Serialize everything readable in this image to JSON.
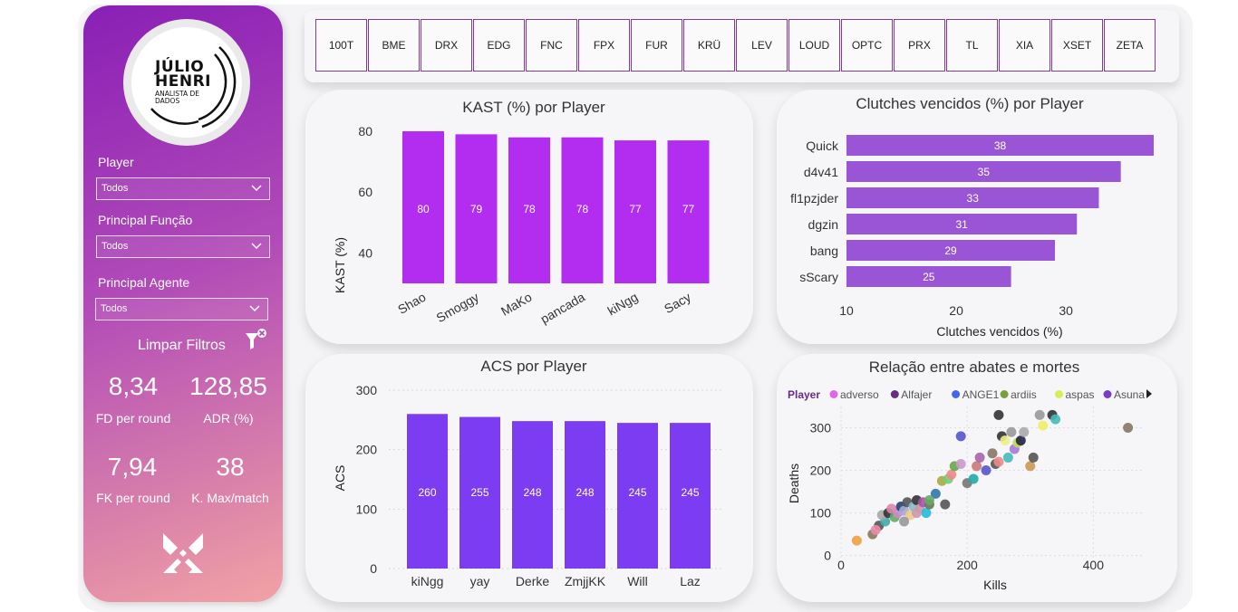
{
  "logo": {
    "line1": "JÚLIO",
    "line2": "HENRI",
    "line3": "ANALISTA DE DADOS"
  },
  "filters": [
    {
      "label": "Player",
      "value": "Todos"
    },
    {
      "label": "Principal Função",
      "value": "Todos"
    },
    {
      "label": "Principal Agente",
      "value": "Todos"
    }
  ],
  "clear_filters": "Limpar Filtros",
  "kpis": [
    {
      "value": "8,34",
      "label": "FD per round"
    },
    {
      "value": "128,85",
      "label": "ADR (%)"
    },
    {
      "value": "7,94",
      "label": "FK per round"
    },
    {
      "value": "38",
      "label": "K. Max/match"
    }
  ],
  "teams": [
    "100T",
    "BME",
    "DRX",
    "EDG",
    "FNC",
    "FPX",
    "FUR",
    "KRÜ",
    "LEV",
    "LOUD",
    "OPTC",
    "PRX",
    "TL",
    "XIA",
    "XSET",
    "ZETA"
  ],
  "colors": {
    "kast_bar": "#b32df0",
    "clutch_bar": "#9a55d6",
    "acs_bar": "#7b3cf2",
    "accent": "#7d3c98"
  },
  "chart_data": [
    {
      "type": "bar",
      "title": "KAST (%) por Player",
      "xlabel": "",
      "ylabel": "KAST (%)",
      "categories": [
        "Shao",
        "Smoggy",
        "MaKo",
        "pancada",
        "kiNgg",
        "Sacy"
      ],
      "values": [
        80,
        79,
        78,
        78,
        77,
        77
      ],
      "labels": [
        "80",
        "79",
        "78",
        "78",
        "77",
        "77"
      ],
      "yticks": [
        "40",
        "60",
        "80"
      ],
      "ylim": [
        30,
        80
      ]
    },
    {
      "type": "bar",
      "orientation": "horizontal",
      "title": "Clutches vencidos (%) por Player",
      "xlabel": "Clutches vencidos (%)",
      "ylabel": "",
      "categories": [
        "Quick",
        "d4v41",
        "fl1pzjder",
        "dgzin",
        "bang",
        "sScary"
      ],
      "values": [
        38,
        35,
        33,
        31,
        29,
        25
      ],
      "labels": [
        "38",
        "35",
        "33",
        "31",
        "29",
        "25"
      ],
      "xticks": [
        "10",
        "20",
        "30"
      ],
      "xlim": [
        10,
        38
      ]
    },
    {
      "type": "bar",
      "title": "ACS por Player",
      "xlabel": "",
      "ylabel": "ACS",
      "categories": [
        "kiNgg",
        "yay",
        "Derke",
        "ZmjjKK",
        "Will",
        "Laz"
      ],
      "values": [
        260,
        255,
        248,
        248,
        245,
        245
      ],
      "labels": [
        "260",
        "255",
        "248",
        "248",
        "245",
        "245"
      ],
      "yticks": [
        "0",
        "100",
        "200",
        "300"
      ],
      "ylim": [
        0,
        300
      ]
    },
    {
      "type": "scatter",
      "title": "Relação entre abates e mortes",
      "xlabel": "Kills",
      "ylabel": "Deaths",
      "xticks": [
        "0",
        "200",
        "400"
      ],
      "yticks": [
        "0",
        "100",
        "200",
        "300"
      ],
      "xlim": [
        0,
        480
      ],
      "ylim": [
        -20,
        350
      ],
      "legend_title": "Player",
      "legend": [
        {
          "name": "adverso",
          "color": "#e063e8"
        },
        {
          "name": "Alfajer",
          "color": "#6b2c82"
        },
        {
          "name": "ANGE1",
          "color": "#4466ee"
        },
        {
          "name": "ardiis",
          "color": "#77a23a"
        },
        {
          "name": "aspas",
          "color": "#d8ee55"
        },
        {
          "name": "Asuna",
          "color": "#7b3cc6"
        }
      ],
      "points": [
        [
          25,
          35,
          "#f0a040"
        ],
        [
          50,
          50,
          "#8a7a5a"
        ],
        [
          60,
          70,
          "#555"
        ],
        [
          70,
          80,
          "#4aa"
        ],
        [
          65,
          95,
          "#aaa"
        ],
        [
          75,
          100,
          "#333"
        ],
        [
          80,
          110,
          "#d8a"
        ],
        [
          85,
          90,
          "#6a6"
        ],
        [
          90,
          100,
          "#c8c"
        ],
        [
          95,
          115,
          "#247"
        ],
        [
          100,
          105,
          "#aac"
        ],
        [
          105,
          125,
          "#555"
        ],
        [
          110,
          95,
          "#ec8"
        ],
        [
          115,
          115,
          "#8bc"
        ],
        [
          120,
          130,
          "#333"
        ],
        [
          125,
          110,
          "#c9a"
        ],
        [
          130,
          125,
          "#a5a"
        ],
        [
          135,
          100,
          "#2bd"
        ],
        [
          140,
          120,
          "#675"
        ],
        [
          150,
          145,
          "#37a"
        ],
        [
          160,
          175,
          "#aa4"
        ],
        [
          165,
          120,
          "#555"
        ],
        [
          170,
          180,
          "#7c7"
        ],
        [
          175,
          190,
          "#e88"
        ],
        [
          180,
          210,
          "#6a4"
        ],
        [
          190,
          215,
          "#c9c"
        ],
        [
          200,
          170,
          "#777"
        ],
        [
          210,
          180,
          "#2aa"
        ],
        [
          215,
          210,
          "#c77"
        ],
        [
          220,
          230,
          "#a6a"
        ],
        [
          230,
          200,
          "#55c"
        ],
        [
          240,
          240,
          "#876"
        ],
        [
          245,
          215,
          "#555"
        ],
        [
          250,
          220,
          "#e88"
        ],
        [
          255,
          280,
          "#333"
        ],
        [
          260,
          270,
          "#ee8"
        ],
        [
          265,
          230,
          "#4bb"
        ],
        [
          270,
          290,
          "#999"
        ],
        [
          275,
          250,
          "#a7d"
        ],
        [
          280,
          265,
          "#bd5"
        ],
        [
          285,
          270,
          "#224"
        ],
        [
          290,
          290,
          "#aaa"
        ],
        [
          300,
          210,
          "#c95"
        ],
        [
          305,
          230,
          "#555"
        ],
        [
          315,
          330,
          "#999"
        ],
        [
          320,
          305,
          "#ee6"
        ],
        [
          335,
          330,
          "#333"
        ],
        [
          250,
          330,
          "#333"
        ],
        [
          190,
          280,
          "#55c"
        ],
        [
          455,
          300,
          "#876"
        ],
        [
          340,
          320,
          "#4bb"
        ],
        [
          100,
          80,
          "#999"
        ],
        [
          120,
          100,
          "#c9a"
        ],
        [
          140,
          130,
          "#6a6"
        ],
        [
          55,
          60,
          "#e8a"
        ]
      ]
    }
  ]
}
